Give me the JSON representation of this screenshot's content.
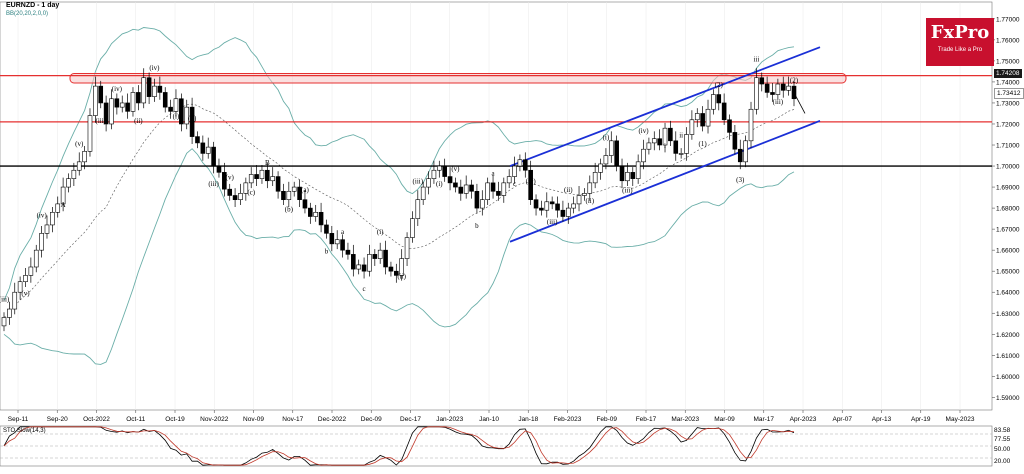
{
  "header": {
    "symbol": "EURNZD - 1 day",
    "indicator": "BB(20,20,2,0,0)"
  },
  "logo": {
    "name": "FxPro",
    "tagline": "Trade Like a Pro",
    "color": "#c8102e"
  },
  "price_tags": {
    "current": "1.74208",
    "second": "1.73412"
  },
  "stochastic": {
    "label": "STO Slow(14,3)",
    "levels": [
      "83.58",
      "77.55",
      "50.00",
      "20.00"
    ]
  },
  "colors": {
    "resistance": "#e53030",
    "zone_fill": "#f6c6c6",
    "support": "#000000",
    "channel": "#1a2fd6",
    "bollinger": "#6aaea8",
    "stoch_main": "#000000",
    "stoch_signal": "#c0392b"
  },
  "chart_data": {
    "type": "candlestick",
    "title": "EURNZD - 1 day",
    "y_axis_ticks": [
      1.77,
      1.76,
      1.75,
      1.74,
      1.73,
      1.72,
      1.71,
      1.7,
      1.69,
      1.68,
      1.67,
      1.66,
      1.65,
      1.64,
      1.63,
      1.62,
      1.61,
      1.6,
      1.59
    ],
    "y_tick_labels": [
      "1.77000",
      "1.76000",
      "1.75000",
      "1.74000",
      "1.73000",
      "1.72000",
      "1.71000",
      "1.70000",
      "1.69000",
      "1.68000",
      "1.67000",
      "1.66000",
      "1.65000",
      "1.64000",
      "1.63000",
      "1.62000",
      "1.61000",
      "1.60000",
      "1.59000"
    ],
    "ylim": [
      1.584,
      1.778
    ],
    "x_tick_labels": [
      "Sep-11",
      "Sep-20",
      "Oct-2022",
      "Oct-11",
      "Oct-19",
      "Nov-2022",
      "Nov-09",
      "Nov-17",
      "Dec-2022",
      "Dec-09",
      "Dec-17",
      "Jan-2023",
      "Jan-10",
      "Jan-18",
      "Feb-2023",
      "Feb-09",
      "Feb-17",
      "Mar-2023",
      "Mar-09",
      "Mar-17",
      "Apr-2023",
      "Apr-07",
      "Apr-13",
      "Apr-19",
      "May-2023"
    ],
    "levels": {
      "resistance_top": 1.743,
      "resistance_mid": 1.721,
      "support": 1.7,
      "zone": [
        1.7395,
        1.744
      ]
    },
    "channel": {
      "upper": [
        [
          "Jan-2023 mid",
          1.7
        ],
        [
          "Apr-2023 early",
          1.7565
        ]
      ],
      "lower": [
        [
          "Jan-2023 mid",
          1.664
        ],
        [
          "Apr-2023 early",
          1.7215
        ]
      ]
    },
    "wave_labels": [
      "(iii)",
      "(v)",
      "(iv)",
      "A",
      "(v)",
      "(iii)",
      "(iv)",
      "(ii)",
      "(iv)",
      "(i)",
      "(ii)",
      "(iii)",
      "(v)",
      "(c)",
      "B",
      "(b)",
      "(a)",
      "b",
      "a",
      "c",
      "(i)",
      "(ii)",
      "(iii)",
      "(i)",
      "(v)",
      "b",
      "a",
      "c",
      "(iv)",
      "(iii)",
      "(ii)",
      "(ii)",
      "(i)",
      "(iii)",
      "(iv)",
      "i",
      "ii",
      "(1)",
      "(2)",
      "(3)",
      "iii",
      "(iii)",
      "(2)"
    ],
    "closes": [
      1.628,
      1.632,
      1.64,
      1.645,
      1.648,
      1.652,
      1.66,
      1.668,
      1.672,
      1.678,
      1.682,
      1.69,
      1.694,
      1.698,
      1.702,
      1.707,
      1.724,
      1.738,
      1.73,
      1.72,
      1.732,
      1.728,
      1.73,
      1.726,
      1.735,
      1.73,
      1.742,
      1.733,
      1.738,
      1.735,
      1.728,
      1.726,
      1.732,
      1.72,
      1.728,
      1.714,
      1.711,
      1.706,
      1.709,
      1.7,
      1.697,
      1.689,
      1.686,
      1.684,
      1.687,
      1.692,
      1.696,
      1.694,
      1.698,
      1.693,
      1.695,
      1.688,
      1.684,
      1.688,
      1.69,
      1.684,
      1.68,
      1.676,
      1.678,
      1.672,
      1.668,
      1.663,
      1.665,
      1.66,
      1.658,
      1.651,
      1.653,
      1.65,
      1.658,
      1.656,
      1.66,
      1.652,
      1.65,
      1.648,
      1.656,
      1.666,
      1.675,
      1.684,
      1.69,
      1.694,
      1.698,
      1.7,
      1.695,
      1.692,
      1.69,
      1.687,
      1.691,
      1.688,
      1.68,
      1.684,
      1.692,
      1.688,
      1.686,
      1.692,
      1.695,
      1.7,
      1.703,
      1.698,
      1.684,
      1.68,
      1.679,
      1.683,
      1.682,
      1.679,
      1.676,
      1.68,
      1.682,
      1.686,
      1.687,
      1.692,
      1.697,
      1.701,
      1.705,
      1.712,
      1.7,
      1.693,
      1.697,
      1.694,
      1.702,
      1.708,
      1.711,
      1.713,
      1.71,
      1.718,
      1.712,
      1.706,
      1.706,
      1.715,
      1.722,
      1.725,
      1.719,
      1.727,
      1.734,
      1.73,
      1.722,
      1.716,
      1.708,
      1.702,
      1.712,
      1.727,
      1.742,
      1.739,
      1.735,
      1.734,
      1.739,
      1.736,
      1.738,
      1.732
    ]
  }
}
